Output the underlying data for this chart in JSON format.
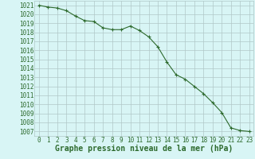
{
  "x": [
    0,
    1,
    2,
    3,
    4,
    5,
    6,
    7,
    8,
    9,
    10,
    11,
    12,
    13,
    14,
    15,
    16,
    17,
    18,
    19,
    20,
    21,
    22,
    23
  ],
  "y": [
    1021.0,
    1020.8,
    1020.7,
    1020.4,
    1019.8,
    1019.3,
    1019.2,
    1018.5,
    1018.3,
    1018.3,
    1018.7,
    1018.2,
    1017.5,
    1016.4,
    1014.7,
    1013.3,
    1012.8,
    1012.0,
    1011.2,
    1010.2,
    1009.1,
    1007.4,
    1007.1,
    1007.0
  ],
  "line_color": "#2d6a2d",
  "marker": "+",
  "marker_size": 3,
  "bg_color": "#d8f5f5",
  "grid_color": "#b0c8c8",
  "ylabel_ticks": [
    1007,
    1008,
    1009,
    1010,
    1011,
    1012,
    1013,
    1014,
    1015,
    1016,
    1017,
    1018,
    1019,
    1020,
    1021
  ],
  "xlabel_label": "Graphe pression niveau de la mer (hPa)",
  "ylim": [
    1006.5,
    1021.5
  ],
  "xlim": [
    -0.5,
    23.5
  ],
  "tick_color": "#2d6a2d",
  "label_fontsize": 5.5,
  "xlabel_fontsize": 7.0
}
